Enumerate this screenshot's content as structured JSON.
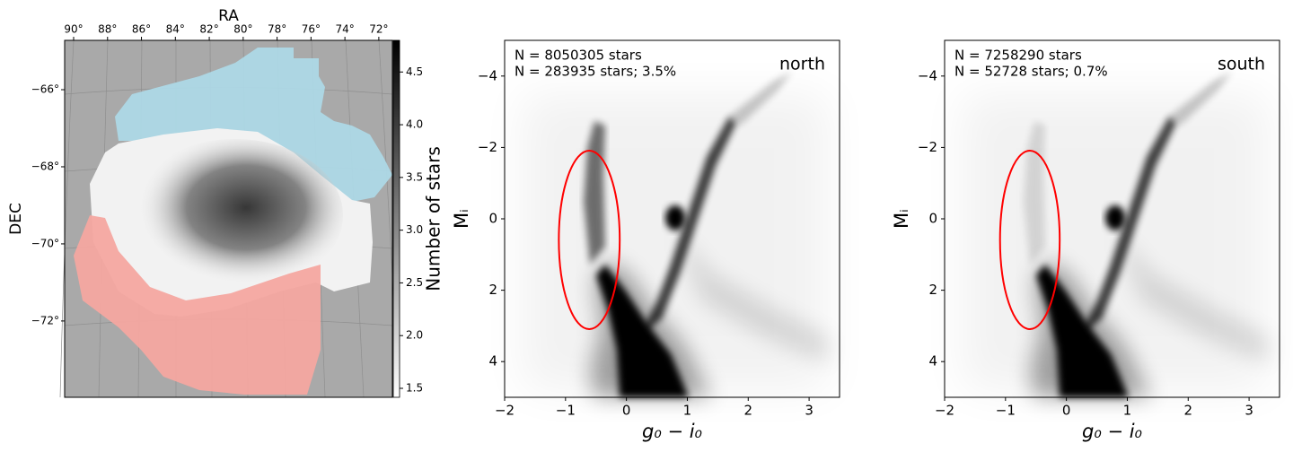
{
  "chart_data": [
    {
      "type": "map",
      "xlabel": "RA",
      "ylabel": "DEC",
      "xlim": [
        90.53,
        71.2
      ],
      "ylim": [
        -73.98,
        -64.72
      ],
      "xticks": [
        {
          "value": 90,
          "label": "90°"
        },
        {
          "value": 88,
          "label": "88°"
        },
        {
          "value": 86,
          "label": "86°"
        },
        {
          "value": 84,
          "label": "84°"
        },
        {
          "value": 82,
          "label": "82°"
        },
        {
          "value": 80,
          "label": "80°"
        },
        {
          "value": 78,
          "label": "78°"
        },
        {
          "value": 76,
          "label": "76°"
        },
        {
          "value": 74,
          "label": "74°"
        },
        {
          "value": 72,
          "label": "72°"
        }
      ],
      "yticks": [
        {
          "value": -66,
          "label": "−66°"
        },
        {
          "value": -68,
          "label": "−68°"
        },
        {
          "value": -70,
          "label": "−70°"
        },
        {
          "value": -72,
          "label": "−72°"
        }
      ],
      "colorbar": {
        "label": "Number of stars",
        "lim": [
          1.415,
          4.8
        ],
        "ticks": [
          1.5,
          {
            "value": 2,
            "label": "2.0"
          },
          2.5,
          {
            "value": 3,
            "label": "3.0"
          },
          3.5,
          {
            "value": 4,
            "label": "4.0"
          },
          4.5
        ]
      }
    },
    {
      "type": "hess",
      "xlabel": "g₀ − i₀",
      "ylabel": "Mᵢ",
      "xlim": [
        -2,
        3.5
      ],
      "ylim": [
        5,
        -5
      ],
      "xticks": [
        {
          "value": -2,
          "label": "−2"
        },
        {
          "value": -1,
          "label": "−1"
        },
        0,
        1,
        2,
        3
      ],
      "yticks": [
        {
          "value": -4,
          "label": "−4"
        },
        {
          "value": -2,
          "label": "−2"
        },
        0,
        2,
        4
      ],
      "annotations": [
        {
          "text": "N = 8050305 stars",
          "color": "#000000"
        },
        {
          "text": "N = 283935 stars; 3.5%",
          "color": "#ff0000"
        }
      ],
      "region_label": {
        "text": "north",
        "color": "#87ceeb"
      },
      "selection": {
        "center": [
          -0.61,
          0.59
        ],
        "width": 1.0,
        "height": 5.0,
        "color": "#ff0000"
      }
    },
    {
      "type": "hess",
      "xlabel": "g₀ − i₀",
      "ylabel": "Mᵢ",
      "xlim": [
        -2,
        3.5
      ],
      "ylim": [
        5,
        -5
      ],
      "xticks": [
        {
          "value": -2,
          "label": "−2"
        },
        {
          "value": -1,
          "label": "−1"
        },
        0,
        1,
        2,
        3
      ],
      "yticks": [
        {
          "value": -4,
          "label": "−4"
        },
        {
          "value": -2,
          "label": "−2"
        },
        0,
        2,
        4
      ],
      "annotations": [
        {
          "text": "N = 7258290 stars",
          "color": "#000000"
        },
        {
          "text": "N = 52728 stars; 0.7%",
          "color": "#ff0000"
        }
      ],
      "region_label": {
        "text": "south",
        "color": "#fa8072"
      },
      "selection": {
        "center": [
          -0.6,
          0.59
        ],
        "width": 0.98,
        "height": 5.0,
        "color": "#ff0000"
      }
    }
  ]
}
